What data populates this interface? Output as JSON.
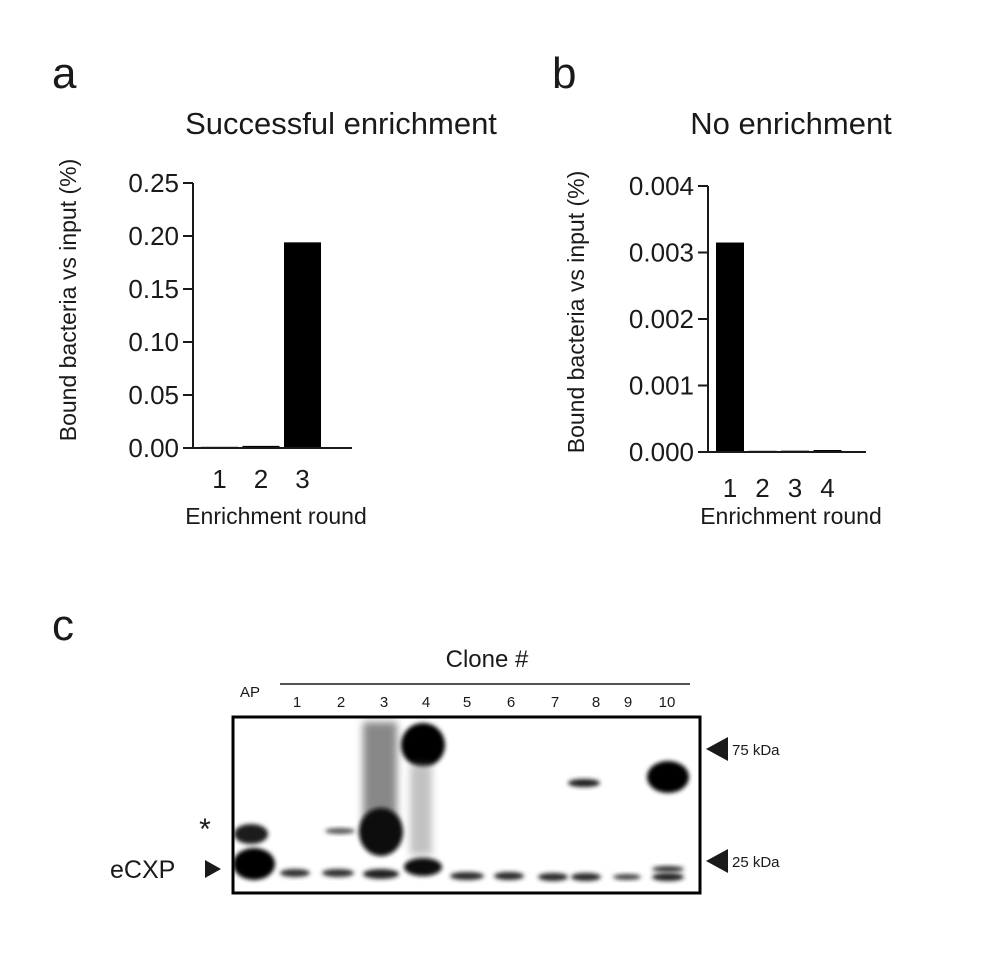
{
  "chart_data": [
    {
      "type": "bar",
      "panel": "a",
      "title": "Successful enrichment",
      "xlabel": "Enrichment round",
      "ylabel": "Bound bacteria vs input (%)",
      "categories": [
        "1",
        "2",
        "3"
      ],
      "values": [
        0.0006,
        0.002,
        0.194
      ],
      "ylim": [
        0,
        0.25
      ],
      "yticks": [
        "0.00",
        "0.05",
        "0.10",
        "0.15",
        "0.20",
        "0.25"
      ],
      "grid": false,
      "bar_color": "#000000"
    },
    {
      "type": "bar",
      "panel": "b",
      "title": "No enrichment",
      "xlabel": "Enrichment round",
      "ylabel": "Bound bacteria vs input (%)",
      "categories": [
        "1",
        "2",
        "3",
        "4"
      ],
      "values": [
        0.00315,
        1e-05,
        2e-05,
        3e-05
      ],
      "ylim": [
        0,
        0.004
      ],
      "yticks": [
        "0.000",
        "0.001",
        "0.002",
        "0.003",
        "0.004"
      ],
      "grid": false,
      "bar_color": "#000000"
    }
  ],
  "blot": {
    "panel": "c",
    "title": "Clone #",
    "ref_lane": "AP",
    "lanes": [
      "1",
      "2",
      "3",
      "4",
      "5",
      "6",
      "7",
      "8",
      "9",
      "10"
    ],
    "markers": [
      "75 kDa",
      "25 kDa"
    ],
    "band_labels": {
      "star": "*",
      "ecxp": "eCXP"
    }
  }
}
